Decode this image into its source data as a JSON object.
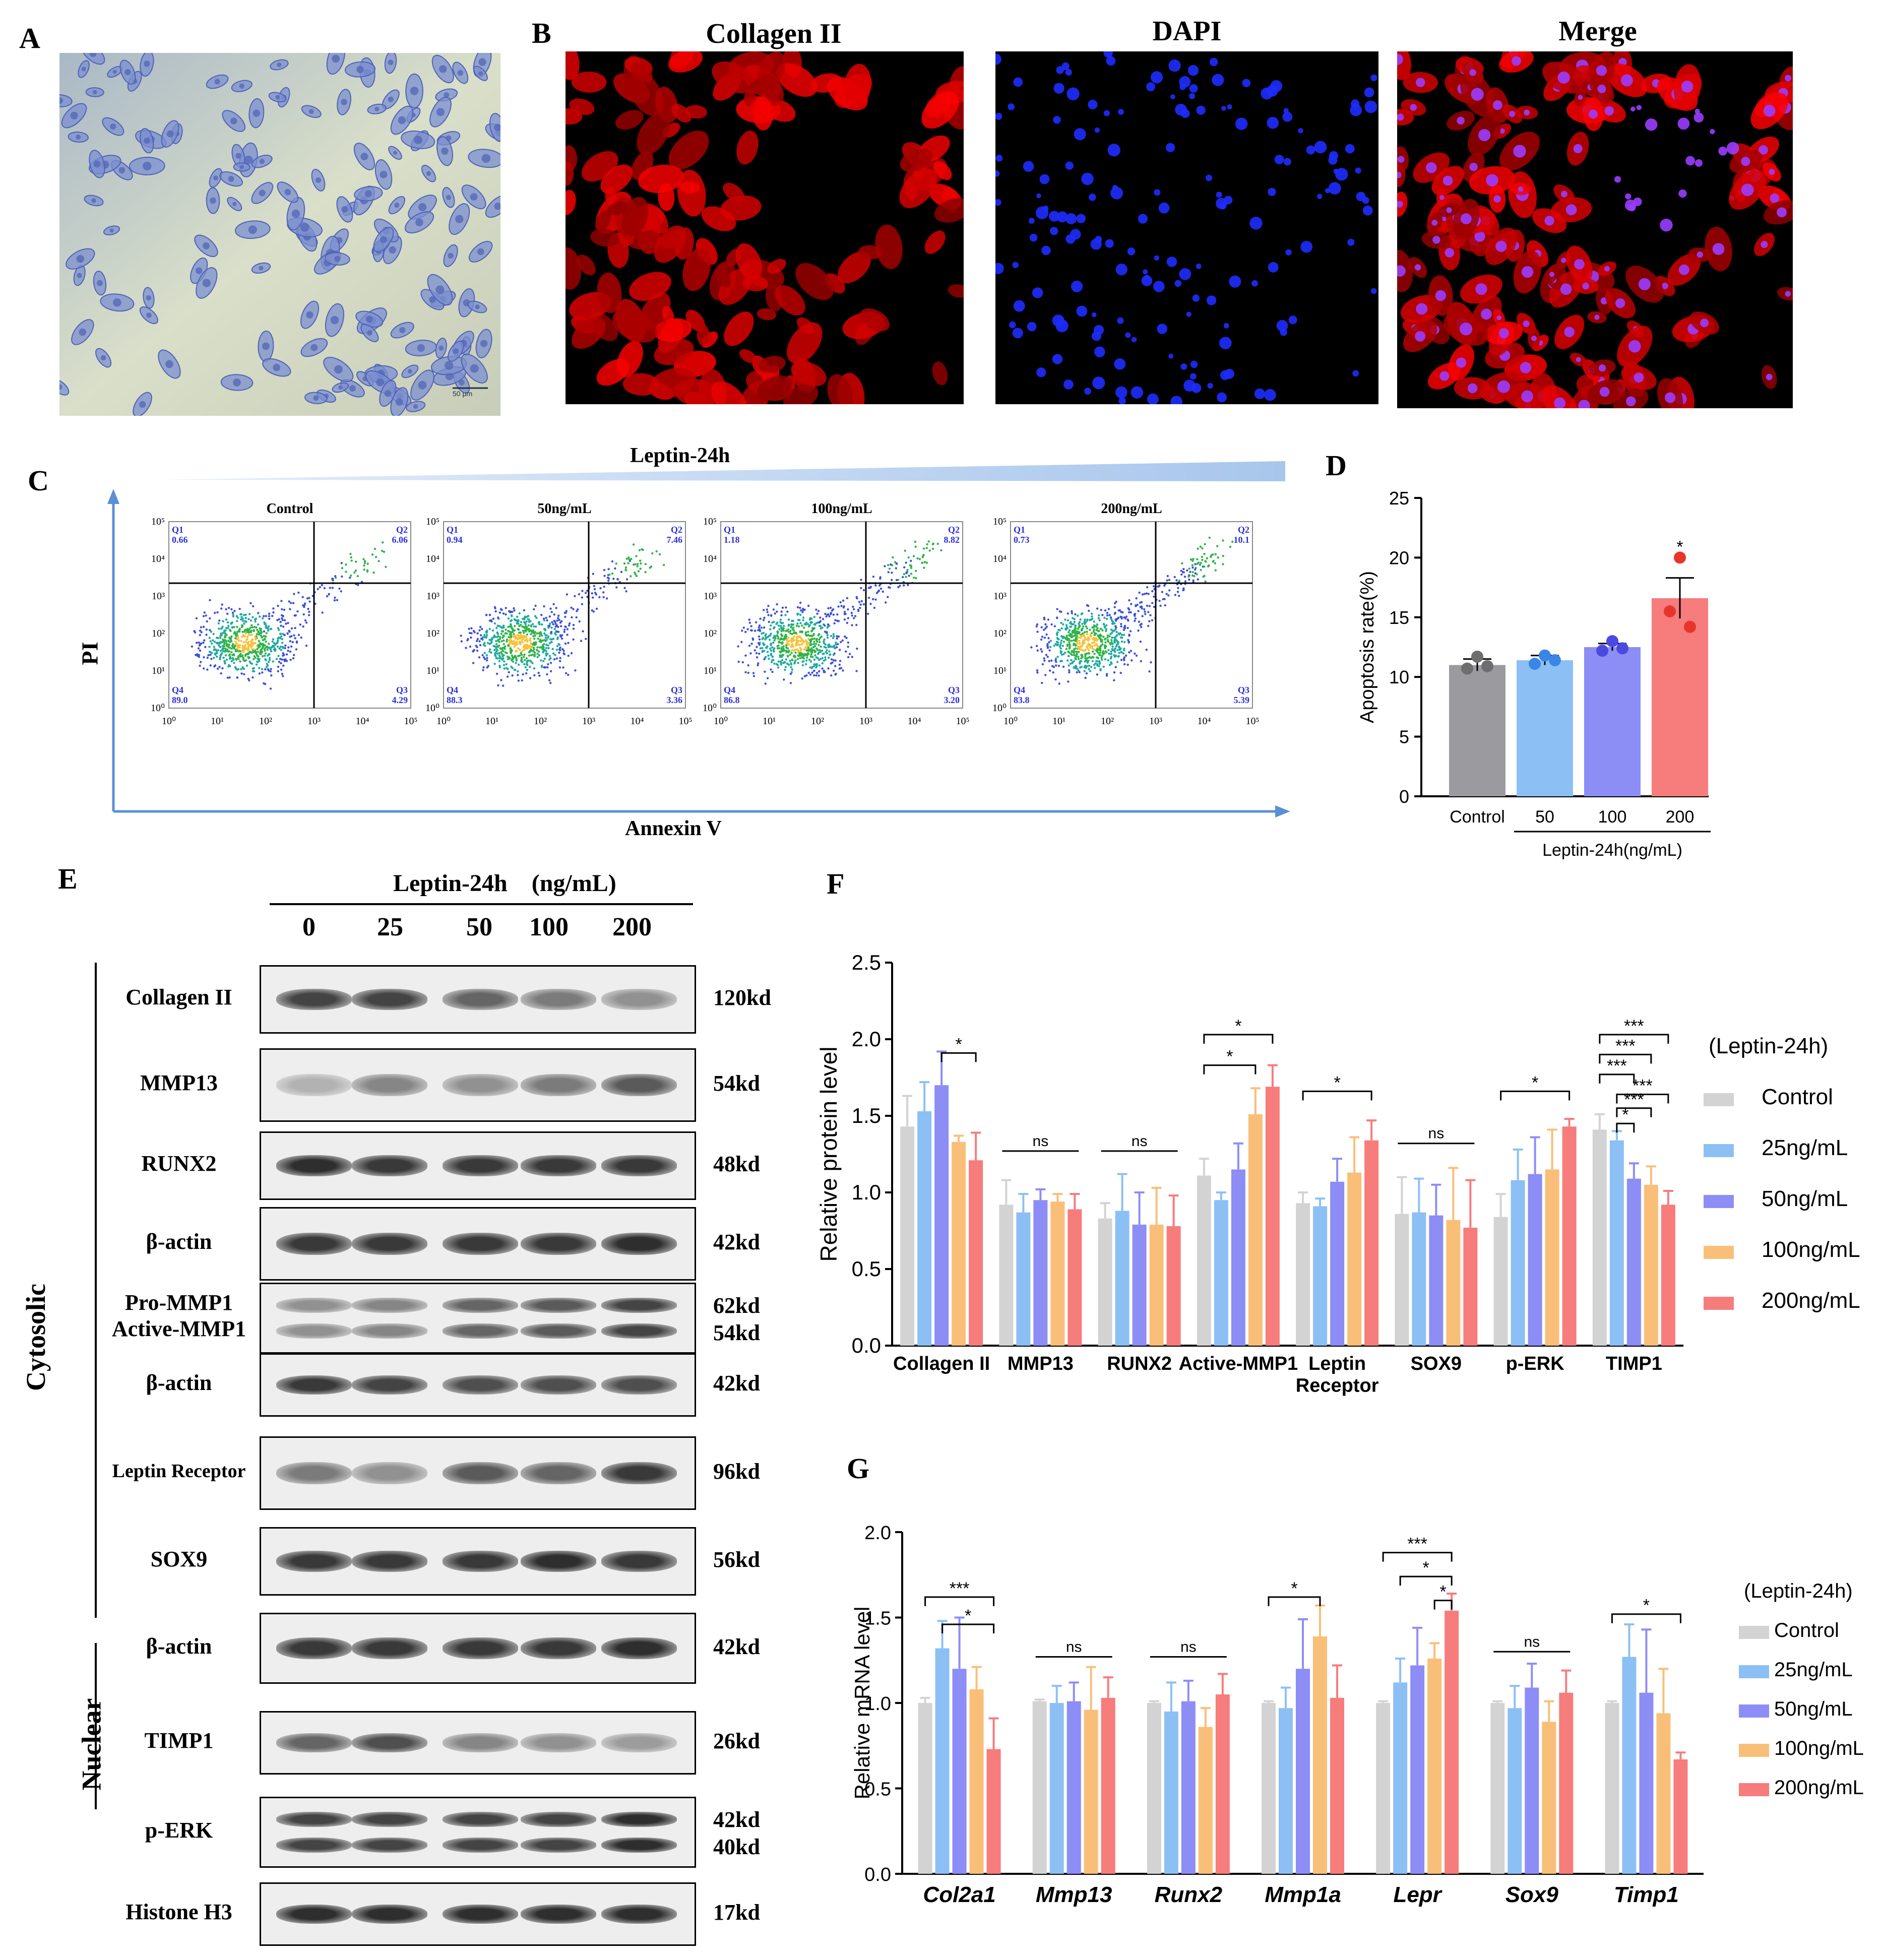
{
  "panels": {
    "A": "A",
    "B": "B",
    "C": "C",
    "D": "D",
    "E": "E",
    "F": "F",
    "G": "G"
  },
  "panelB": {
    "titles": [
      "Collagen II",
      "DAPI",
      "Merge"
    ]
  },
  "panelA": {
    "scalebar": "50 μm"
  },
  "panelC": {
    "header": "Leptin-24h",
    "ylabel": "PI",
    "xlabel": "Annexin V",
    "ticks": [
      "10⁰",
      "10¹",
      "10²",
      "10³",
      "10⁴",
      "10⁵"
    ],
    "plots": [
      {
        "title": "Control",
        "Q1": "0.66",
        "Q2": "6.06",
        "Q3": "4.29",
        "Q4": "89.0"
      },
      {
        "title": "50ng/mL",
        "Q1": "0.94",
        "Q2": "7.46",
        "Q3": "3.36",
        "Q4": "88.3"
      },
      {
        "title": "100ng/mL",
        "Q1": "1.18",
        "Q2": "8.82",
        "Q3": "3.20",
        "Q4": "86.8"
      },
      {
        "title": "200ng/mL",
        "Q1": "0.73",
        "Q2": "10.1",
        "Q3": "5.39",
        "Q4": "83.8"
      }
    ],
    "qnames": [
      "Q1",
      "Q2",
      "Q3",
      "Q4"
    ]
  },
  "panelE": {
    "header": "Leptin-24h    (ng/mL)",
    "lanes": [
      "0",
      "25",
      "50",
      "100",
      "200"
    ],
    "cytosolic": "Cytosolic",
    "nuclear": "Nuclear",
    "blots": [
      {
        "name": "Collagen II",
        "kd": [
          "120kd"
        ],
        "intensity": [
          0.85,
          0.85,
          0.7,
          0.6,
          0.5
        ]
      },
      {
        "name": "MMP13",
        "kd": [
          "54kd"
        ],
        "intensity": [
          0.35,
          0.55,
          0.5,
          0.6,
          0.75
        ]
      },
      {
        "name": "RUNX2",
        "kd": [
          "48kd"
        ],
        "intensity": [
          0.95,
          0.9,
          0.9,
          0.9,
          0.9
        ]
      },
      {
        "name": "β-actin",
        "kd": [
          "42kd"
        ],
        "intensity": [
          0.9,
          0.9,
          0.9,
          0.9,
          0.95
        ]
      },
      {
        "name": "Pro-MMP1\nActive-MMP1",
        "kd": [
          "62kd",
          "54kd"
        ],
        "intensity": [
          0.5,
          0.55,
          0.7,
          0.75,
          0.85
        ]
      },
      {
        "name": "β-actin",
        "kd": [
          "42kd"
        ],
        "intensity": [
          0.9,
          0.85,
          0.8,
          0.8,
          0.8
        ]
      },
      {
        "name": "Leptin Receptor",
        "kd": [
          "96kd"
        ],
        "intensity": [
          0.6,
          0.5,
          0.75,
          0.7,
          0.9
        ]
      },
      {
        "name": "SOX9",
        "kd": [
          "56kd"
        ],
        "intensity": [
          0.9,
          0.9,
          0.9,
          0.95,
          0.9
        ]
      },
      {
        "name": "β-actin",
        "kd": [
          "42kd"
        ],
        "intensity": [
          0.9,
          0.9,
          0.9,
          0.9,
          0.95
        ]
      },
      {
        "name": "TIMP1",
        "kd": [
          "26kd"
        ],
        "intensity": [
          0.7,
          0.8,
          0.55,
          0.5,
          0.45
        ]
      },
      {
        "name": "p-ERK",
        "kd": [
          "42kd",
          "40kd"
        ],
        "intensity": [
          0.85,
          0.85,
          0.85,
          0.85,
          0.95
        ]
      },
      {
        "name": "Histone H3",
        "kd": [
          "17kd"
        ],
        "intensity": [
          0.95,
          0.95,
          0.95,
          0.95,
          0.95
        ]
      }
    ]
  },
  "chart_data": [
    {
      "id": "D",
      "type": "bar",
      "ylabel": "Apoptosis rate(%)",
      "xlabel": "Leptin-24h(ng/mL)",
      "categories": [
        "Control",
        "50",
        "100",
        "200"
      ],
      "values": [
        11.0,
        11.4,
        12.5,
        16.6
      ],
      "errors": [
        0.5,
        0.4,
        0.3,
        1.7
      ],
      "points": [
        [
          11.7,
          10.7,
          10.9
        ],
        [
          11.8,
          11.1,
          11.4
        ],
        [
          13.0,
          12.2,
          12.4
        ],
        [
          20.0,
          15.5,
          14.2
        ]
      ],
      "colors": [
        "#9b9b9f",
        "#8cc0f5",
        "#8d8df6",
        "#f77c7c"
      ],
      "ylim": [
        0,
        25
      ],
      "yticks": [
        "0",
        "5",
        "10",
        "15",
        "20",
        "25"
      ],
      "significance": [
        "",
        "",
        "",
        "*"
      ]
    },
    {
      "id": "F",
      "type": "bar",
      "ylabel": "Relative protein level",
      "categories": [
        "Collagen II",
        "MMP13",
        "RUNX2",
        "Active-MMP1",
        "Leptin\nReceptor",
        "SOX9",
        "p-ERK",
        "TIMP1"
      ],
      "legend_title": "(Leptin-24h)",
      "series": [
        {
          "name": "Control",
          "color": "#d3d3d3",
          "values": [
            1.43,
            0.92,
            0.83,
            1.11,
            0.93,
            0.86,
            0.84,
            1.41
          ],
          "errors": [
            0.2,
            0.16,
            0.1,
            0.11,
            0.07,
            0.24,
            0.15,
            0.1
          ]
        },
        {
          "name": "25ng/mL",
          "color": "#8cc0f5",
          "values": [
            1.53,
            0.87,
            0.88,
            0.95,
            0.91,
            0.87,
            1.08,
            1.34
          ],
          "errors": [
            0.19,
            0.12,
            0.24,
            0.05,
            0.05,
            0.22,
            0.2,
            0.06
          ]
        },
        {
          "name": "50ng/mL",
          "color": "#8d8df6",
          "values": [
            1.7,
            0.95,
            0.79,
            1.15,
            1.07,
            0.85,
            1.12,
            1.09
          ],
          "errors": [
            0.22,
            0.07,
            0.21,
            0.17,
            0.15,
            0.2,
            0.24,
            0.1
          ]
        },
        {
          "name": "100ng/mL",
          "color": "#f9bf78",
          "values": [
            1.33,
            0.94,
            0.79,
            1.51,
            1.13,
            0.82,
            1.15,
            1.05
          ],
          "errors": [
            0.04,
            0.05,
            0.24,
            0.17,
            0.23,
            0.34,
            0.26,
            0.12
          ]
        },
        {
          "name": "200ng/mL",
          "color": "#f77c7c",
          "values": [
            1.21,
            0.89,
            0.78,
            1.69,
            1.34,
            0.77,
            1.43,
            0.92
          ],
          "errors": [
            0.18,
            0.1,
            0.2,
            0.14,
            0.13,
            0.31,
            0.05,
            0.09
          ]
        }
      ],
      "ylim": [
        0,
        2.5
      ],
      "yticks": [
        "0.0",
        "0.5",
        "1.0",
        "1.5",
        "2.0",
        "2.5"
      ],
      "brackets": [
        {
          "g": 0,
          "from": 2,
          "to": 4,
          "level": 1.91,
          "label": "*"
        },
        {
          "g": 1,
          "from": 0,
          "to": 4,
          "level": 1.27,
          "label": "ns"
        },
        {
          "g": 2,
          "from": 0,
          "to": 4,
          "level": 1.27,
          "label": "ns"
        },
        {
          "g": 3,
          "from": 0,
          "to": 4,
          "level": 2.03,
          "label": "*"
        },
        {
          "g": 3,
          "from": 0,
          "to": 3,
          "level": 1.83,
          "label": "*"
        },
        {
          "g": 4,
          "from": 0,
          "to": 4,
          "level": 1.66,
          "label": "*"
        },
        {
          "g": 5,
          "from": 0,
          "to": 4,
          "level": 1.32,
          "label": "ns"
        },
        {
          "g": 6,
          "from": 0,
          "to": 4,
          "level": 1.66,
          "label": "*"
        },
        {
          "g": 7,
          "from": 0,
          "to": 4,
          "level": 2.03,
          "label": "***"
        },
        {
          "g": 7,
          "from": 0,
          "to": 3,
          "level": 1.9,
          "label": "***"
        },
        {
          "g": 7,
          "from": 0,
          "to": 2,
          "level": 1.77,
          "label": "***"
        },
        {
          "g": 7,
          "from": 1,
          "to": 4,
          "level": 1.64,
          "label": "***"
        },
        {
          "g": 7,
          "from": 1,
          "to": 3,
          "level": 1.55,
          "label": "***"
        },
        {
          "g": 7,
          "from": 1,
          "to": 2,
          "level": 1.45,
          "label": "*"
        }
      ]
    },
    {
      "id": "G",
      "type": "bar",
      "ylabel": "Relative mRNA level",
      "categories": [
        "Col2a1",
        "Mmp13",
        "Runx2",
        "Mmp1a",
        "Lepr",
        "Sox9",
        "Timp1"
      ],
      "legend_title": "(Leptin-24h)",
      "series": [
        {
          "name": "Control",
          "color": "#d3d3d3",
          "values": [
            1.0,
            1.01,
            1.0,
            1.0,
            1.0,
            1.0,
            1.0
          ],
          "errors": [
            0.03,
            0.01,
            0.01,
            0.01,
            0.01,
            0.01,
            0.01
          ]
        },
        {
          "name": "25ng/mL",
          "color": "#8cc0f5",
          "values": [
            1.32,
            1.0,
            0.95,
            0.97,
            1.12,
            0.97,
            1.27
          ],
          "errors": [
            0.16,
            0.1,
            0.17,
            0.12,
            0.14,
            0.13,
            0.19
          ]
        },
        {
          "name": "50ng/mL",
          "color": "#8d8df6",
          "values": [
            1.2,
            1.01,
            1.01,
            1.2,
            1.22,
            1.09,
            1.06
          ],
          "errors": [
            0.3,
            0.11,
            0.12,
            0.29,
            0.22,
            0.14,
            0.37
          ]
        },
        {
          "name": "100ng/mL",
          "color": "#f9bf78",
          "values": [
            1.08,
            0.96,
            0.86,
            1.39,
            1.26,
            0.89,
            0.94
          ],
          "errors": [
            0.13,
            0.25,
            0.11,
            0.18,
            0.09,
            0.12,
            0.26
          ]
        },
        {
          "name": "200ng/mL",
          "color": "#f77c7c",
          "values": [
            0.73,
            1.03,
            1.05,
            1.03,
            1.54,
            1.06,
            0.67
          ],
          "errors": [
            0.18,
            0.12,
            0.12,
            0.19,
            0.1,
            0.13,
            0.04
          ]
        }
      ],
      "ylim": [
        0,
        2.0
      ],
      "yticks": [
        "0.0",
        "0.5",
        "1.0",
        "1.5",
        "2.0"
      ],
      "brackets": [
        {
          "g": 0,
          "from": 0,
          "to": 4,
          "level": 1.62,
          "label": "***"
        },
        {
          "g": 0,
          "from": 1,
          "to": 4,
          "level": 1.46,
          "label": "*"
        },
        {
          "g": 1,
          "from": 0,
          "to": 4,
          "level": 1.27,
          "label": "ns"
        },
        {
          "g": 2,
          "from": 0,
          "to": 4,
          "level": 1.27,
          "label": "ns"
        },
        {
          "g": 3,
          "from": 0,
          "to": 3,
          "level": 1.62,
          "label": "*"
        },
        {
          "g": 4,
          "from": 0,
          "to": 4,
          "level": 1.88,
          "label": "***"
        },
        {
          "g": 4,
          "from": 1,
          "to": 4,
          "level": 1.74,
          "label": "*"
        },
        {
          "g": 4,
          "from": 3,
          "to": 4,
          "level": 1.6,
          "label": "*"
        },
        {
          "g": 5,
          "from": 0,
          "to": 4,
          "level": 1.3,
          "label": "ns"
        },
        {
          "g": 6,
          "from": 0,
          "to": 4,
          "level": 1.52,
          "label": "*"
        }
      ]
    }
  ]
}
